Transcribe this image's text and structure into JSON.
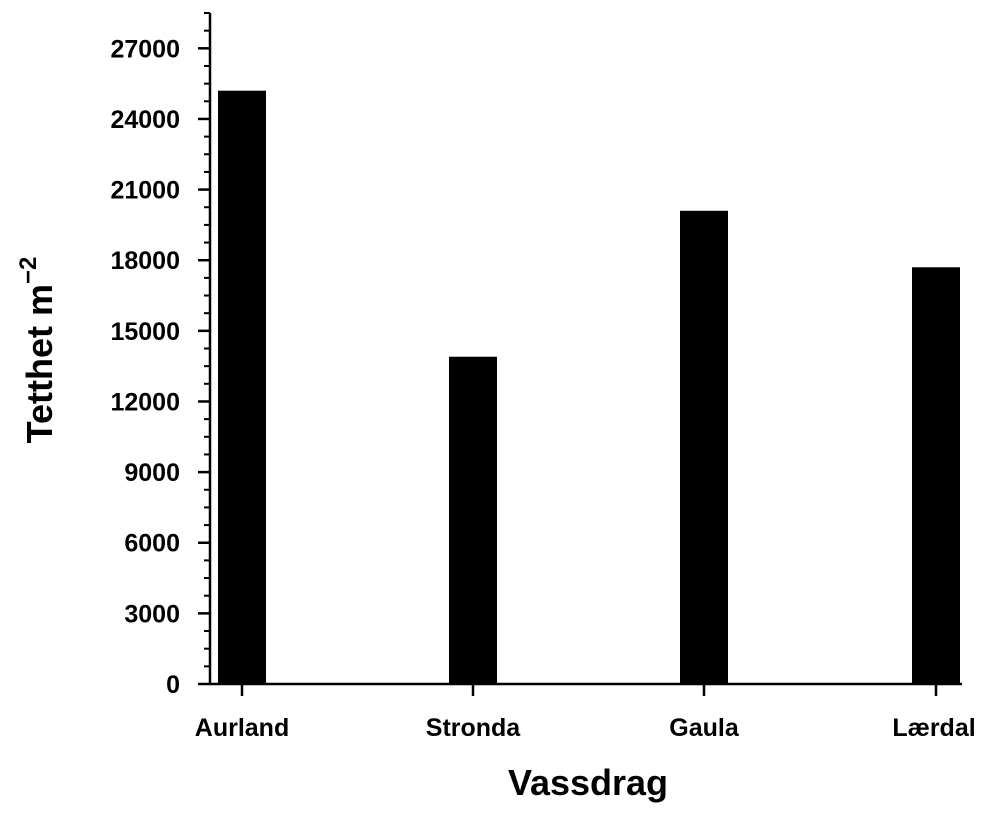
{
  "chart_data": {
    "type": "bar",
    "categories": [
      "Aurland",
      "Stronda",
      "Gaula",
      "Lærdal"
    ],
    "values": [
      25200,
      13900,
      20100,
      17700
    ],
    "xlabel": "Vassdrag",
    "ylabel": "Tetthet m",
    "ylabel_superscript": "−2",
    "yticks": [
      "0",
      "3000",
      "6000",
      "9000",
      "12000",
      "15000",
      "18000",
      "21000",
      "24000",
      "27000"
    ],
    "ylim": [
      0,
      28500
    ],
    "grid": false,
    "bar_color": "#000000"
  }
}
